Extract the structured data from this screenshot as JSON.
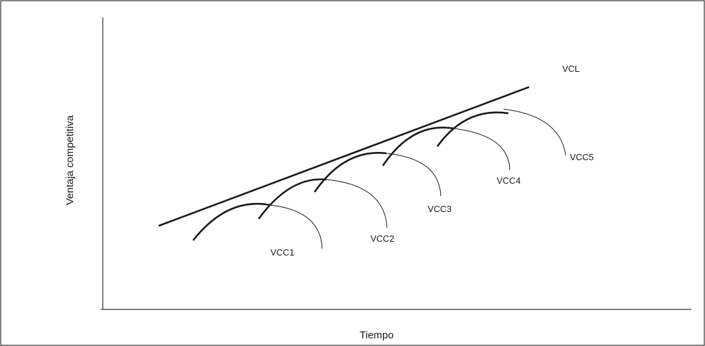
{
  "diagram": {
    "x_axis_label": "Tiempo",
    "y_axis_label": "Ventaja competitiva",
    "long_term_line_label": "VCL",
    "short_term_curves": [
      {
        "label": "VCC1"
      },
      {
        "label": "VCC2"
      },
      {
        "label": "VCC3"
      },
      {
        "label": "VCC4"
      },
      {
        "label": "VCC5"
      }
    ]
  }
}
